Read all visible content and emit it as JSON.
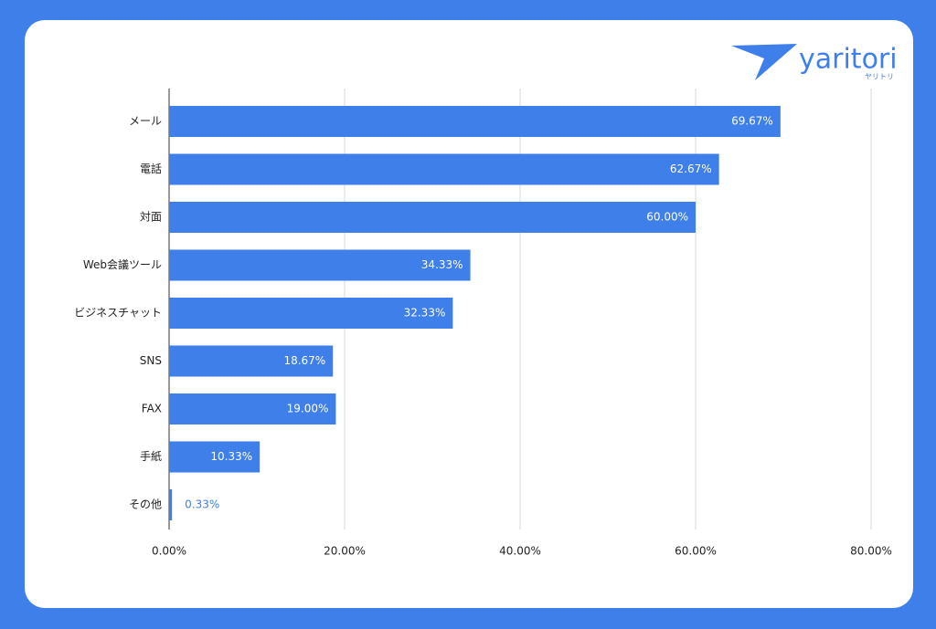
{
  "logo": {
    "text": "yaritori",
    "kana": "ヤリトリ"
  },
  "chart_data": {
    "type": "bar",
    "orientation": "horizontal",
    "categories": [
      "メール",
      "電話",
      "対面",
      "Web会議ツール",
      "ビジネスチャット",
      "SNS",
      "FAX",
      "手紙",
      "その他"
    ],
    "values": [
      69.67,
      62.67,
      60.0,
      34.33,
      32.33,
      18.67,
      19.0,
      10.33,
      0.33
    ],
    "value_labels": [
      "69.67%",
      "62.67%",
      "60.00%",
      "34.33%",
      "32.33%",
      "18.67%",
      "19.00%",
      "10.33%",
      "0.33%"
    ],
    "color": "#3f7fe9",
    "xlim": [
      0,
      80
    ],
    "xticks": [
      {
        "value": 0,
        "label": "0.00%"
      },
      {
        "value": 20,
        "label": "20.00%"
      },
      {
        "value": 40,
        "label": "40.00%"
      },
      {
        "value": 60,
        "label": "60.00%"
      },
      {
        "value": 80,
        "label": "80.00%"
      }
    ],
    "grid": true
  }
}
